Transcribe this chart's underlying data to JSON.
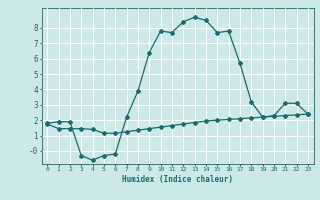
{
  "title": "",
  "xlabel": "Humidex (Indice chaleur)",
  "ylabel": "",
  "background_color": "#cce8e8",
  "line_color": "#1a6b6b",
  "grid_color": "#ffffff",
  "xlim": [
    -0.5,
    23.5
  ],
  "ylim": [
    -0.85,
    9.3
  ],
  "yticks": [
    0,
    1,
    2,
    3,
    4,
    5,
    6,
    7,
    8
  ],
  "ytick_labels": [
    "-0",
    "1",
    "2",
    "3",
    "4",
    "5",
    "6",
    "7",
    "8"
  ],
  "xticks": [
    0,
    1,
    2,
    3,
    4,
    5,
    6,
    7,
    8,
    9,
    10,
    11,
    12,
    13,
    14,
    15,
    16,
    17,
    18,
    19,
    20,
    21,
    22,
    23
  ],
  "series1_x": [
    0,
    1,
    2,
    3,
    4,
    5,
    6,
    7,
    8,
    9,
    10,
    11,
    12,
    13,
    14,
    15,
    16,
    17,
    18,
    19,
    20,
    21,
    22,
    23
  ],
  "series1_y": [
    1.8,
    1.9,
    1.9,
    -0.3,
    -0.6,
    -0.3,
    -0.2,
    2.2,
    3.9,
    6.4,
    7.8,
    7.7,
    8.4,
    8.7,
    8.5,
    7.7,
    7.8,
    5.7,
    3.2,
    2.2,
    2.3,
    3.1,
    3.1,
    2.4
  ],
  "series2_x": [
    0,
    1,
    2,
    3,
    4,
    5,
    6,
    7,
    8,
    9,
    10,
    11,
    12,
    13,
    14,
    15,
    16,
    17,
    18,
    19,
    20,
    21,
    22,
    23
  ],
  "series2_y": [
    1.75,
    1.45,
    1.45,
    1.45,
    1.4,
    1.15,
    1.15,
    1.25,
    1.35,
    1.45,
    1.55,
    1.65,
    1.75,
    1.85,
    1.95,
    2.0,
    2.05,
    2.1,
    2.15,
    2.2,
    2.25,
    2.3,
    2.35,
    2.4
  ]
}
